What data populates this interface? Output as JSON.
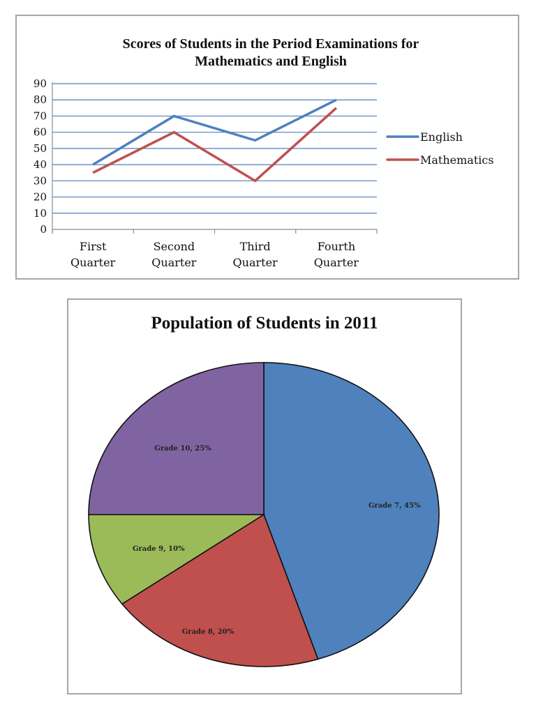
{
  "chart_data": [
    {
      "type": "line",
      "title": "Scores of Students in the Period Examinations for Mathematics and English",
      "title_lines": [
        "Scores of Students in the Period Examinations for",
        "Mathematics and English"
      ],
      "categories": [
        "First Quarter",
        "Second Quarter",
        "Third Quarter",
        "Fourth Quarter"
      ],
      "category_lines": [
        [
          "First",
          "Quarter"
        ],
        [
          "Second",
          "Quarter"
        ],
        [
          "Third",
          "Quarter"
        ],
        [
          "Fourth",
          "Quarter"
        ]
      ],
      "series": [
        {
          "name": "English",
          "values": [
            40,
            70,
            55,
            80
          ],
          "color": "#4f81bd"
        },
        {
          "name": "Mathematics",
          "values": [
            35,
            60,
            30,
            75
          ],
          "color": "#c0504d"
        }
      ],
      "xlabel": "",
      "ylabel": "",
      "ylim": [
        0,
        90
      ],
      "yticks": [
        0,
        10,
        20,
        30,
        40,
        50,
        60,
        70,
        80,
        90
      ],
      "grid": true,
      "gridline_color": "#4f81bd",
      "legend_position": "right"
    },
    {
      "type": "pie",
      "title": "Population of Students in 2011",
      "slices": [
        {
          "label": "Grade 7",
          "value": 45,
          "display": "Grade 7, 45%",
          "color": "#4f81bd"
        },
        {
          "label": "Grade 8",
          "value": 20,
          "display": "Grade 8, 20%",
          "color": "#c0504d"
        },
        {
          "label": "Grade 9",
          "value": 10,
          "display": "Grade 9, 10%",
          "color": "#9bbb59"
        },
        {
          "label": "Grade 10",
          "value": 25,
          "display": "Grade 10, 25%",
          "color": "#8064a2"
        }
      ],
      "unit": "%",
      "legend_position": "none",
      "data_labels": "inside"
    }
  ]
}
